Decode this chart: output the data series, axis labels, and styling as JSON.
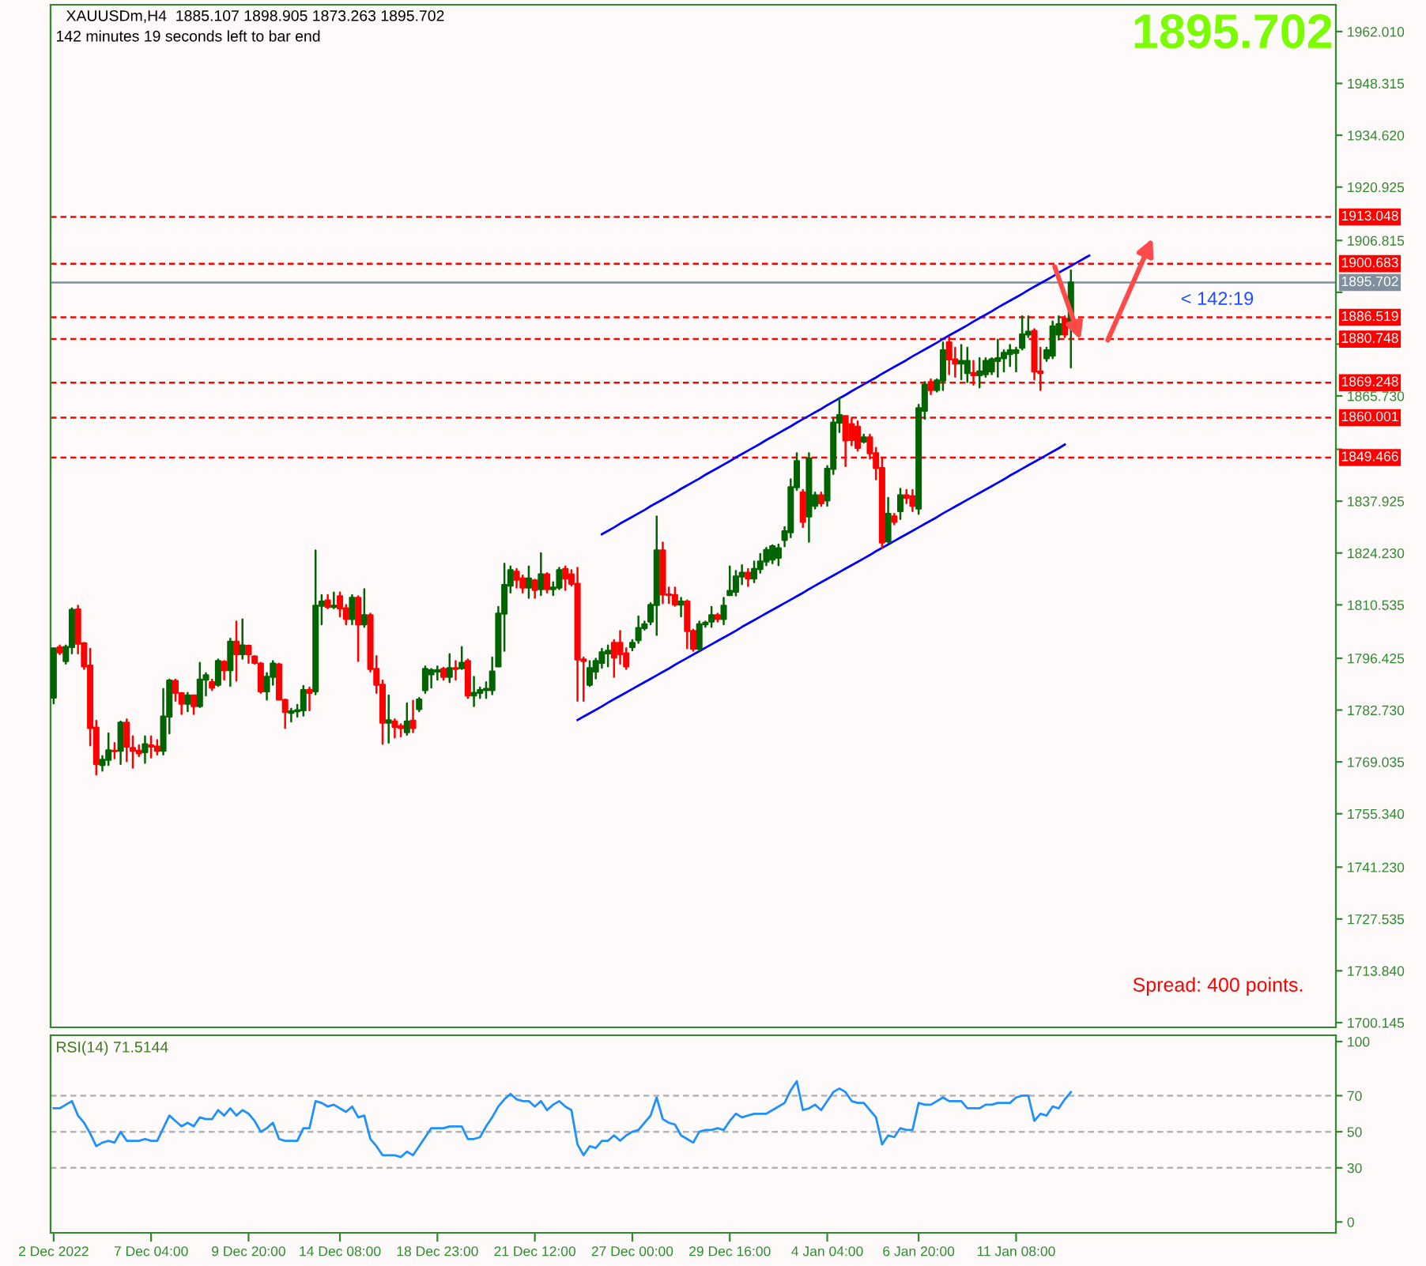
{
  "chart_data": [
    {
      "type": "candlestick",
      "title": "XAUUSDm,H4  1885.107 1898.905 1873.263 1895.702",
      "subtitle": "142 minutes 19 seconds left to bar end",
      "categories": [
        "2 Dec 2022",
        null,
        null,
        null,
        null,
        null,
        null,
        null,
        null,
        null,
        null,
        null,
        null,
        null,
        null,
        null,
        "7 Dec 04:00",
        null,
        null,
        null,
        null,
        null,
        null,
        null,
        null,
        null,
        null,
        null,
        null,
        null,
        null,
        null,
        "9 Dec 20:00",
        null,
        null,
        null,
        null,
        null,
        null,
        null,
        null,
        null,
        null,
        null,
        null,
        null,
        null,
        "14 Dec 08:00",
        null,
        null,
        null,
        null,
        null,
        null,
        null,
        null,
        null,
        null,
        null,
        null,
        null,
        null,
        null,
        "18 Dec 23:00",
        null,
        null,
        null,
        null,
        null,
        null,
        null,
        null,
        null,
        null,
        null,
        null,
        null,
        null,
        null,
        "21 Dec 12:00",
        null,
        null,
        null,
        null,
        null,
        null,
        null,
        null,
        null,
        null,
        null,
        null,
        null,
        null,
        null,
        "27 Dec 00:00",
        null,
        null,
        null,
        null,
        null,
        null,
        null,
        null,
        null,
        null,
        null,
        null,
        null,
        null,
        null,
        "29 Dec 16:00",
        null,
        null,
        null,
        null,
        null,
        null,
        null,
        null,
        null,
        null,
        null,
        null,
        null,
        null,
        null,
        "4 Jan 04:00",
        null,
        null,
        null,
        null,
        null,
        null,
        null,
        null,
        null,
        null,
        null,
        null,
        null,
        null,
        "6 Jan 20:00",
        null,
        null,
        null,
        null,
        null,
        null,
        null,
        null,
        null,
        null,
        null,
        null,
        null,
        null,
        null,
        "11 Jan 08:00",
        null,
        null,
        null,
        null,
        null,
        null,
        null,
        null,
        null,
        null,
        null,
        null,
        null,
        null,
        null,
        null,
        null,
        null,
        null,
        null,
        null,
        null,
        null,
        null,
        null,
        null,
        null,
        null,
        null,
        null,
        null,
        null,
        null,
        null,
        null,
        null,
        null,
        null,
        null,
        null,
        null,
        null,
        null,
        null,
        null,
        null,
        null,
        null,
        null,
        null,
        null,
        null
      ],
      "ohlc": [
        [
          1786,
          1799.1,
          1784.5,
          1799
        ],
        [
          1799.3,
          1799.8,
          1797.5,
          1798
        ],
        [
          1795.7,
          1799.8,
          1795,
          1799.4
        ],
        [
          1799.4,
          1809.6,
          1797.7,
          1809.2
        ],
        [
          1809.3,
          1810.3,
          1797.7,
          1800.3
        ],
        [
          1800.4,
          1800.5,
          1793.6,
          1794.3
        ],
        [
          1794.5,
          1798.9,
          1773.4,
          1778
        ],
        [
          1778.1,
          1779.9,
          1765.7,
          1768.5
        ],
        [
          1768.2,
          1770.6,
          1766.7,
          1769.6
        ],
        [
          1769.6,
          1776.6,
          1768.2,
          1772.1
        ],
        [
          1772,
          1774,
          1770,
          1771.9
        ],
        [
          1772,
          1779.7,
          1768.5,
          1779.4
        ],
        [
          1779.4,
          1780.3,
          1769.2,
          1773.1
        ],
        [
          1772.7,
          1775.8,
          1767.5,
          1772
        ],
        [
          1772,
          1773.4,
          1770.6,
          1771.3
        ],
        [
          1771.6,
          1775.8,
          1768.8,
          1773.7
        ],
        [
          1773.4,
          1775.8,
          1770.2,
          1773.1
        ],
        [
          1773.1,
          1774.8,
          1771,
          1772
        ],
        [
          1772,
          1788.3,
          1771,
          1781
        ],
        [
          1781,
          1790.8,
          1776.6,
          1790.5
        ],
        [
          1790.4,
          1790.8,
          1785.2,
          1787.3
        ],
        [
          1787.2,
          1787.3,
          1781.7,
          1784.4
        ],
        [
          1784.4,
          1787.3,
          1782.4,
          1786.6
        ],
        [
          1786.6,
          1786.6,
          1781.7,
          1783.8
        ],
        [
          1783.8,
          1795.2,
          1783.5,
          1790.8
        ],
        [
          1790.8,
          1792.5,
          1786.6,
          1791.9
        ],
        [
          1790.1,
          1790.8,
          1788,
          1788.7
        ],
        [
          1789.4,
          1796.1,
          1789.1,
          1795.7
        ],
        [
          1795.5,
          1795.7,
          1790.8,
          1793.3
        ],
        [
          1793.3,
          1801.6,
          1789.1,
          1800.8
        ],
        [
          1800.8,
          1806.1,
          1790.5,
          1797.5
        ],
        [
          1797.5,
          1806.7,
          1796.3,
          1799.8
        ],
        [
          1799.7,
          1799.8,
          1795.2,
          1797.5
        ],
        [
          1796.9,
          1797,
          1795,
          1795.2
        ],
        [
          1795,
          1795.2,
          1787.3,
          1787.7
        ],
        [
          1787.7,
          1792.5,
          1785.5,
          1791.5
        ],
        [
          1791.5,
          1795.7,
          1789.4,
          1795
        ],
        [
          1794.8,
          1795,
          1785.5,
          1785.5
        ],
        [
          1785.4,
          1785.5,
          1778,
          1782.2
        ],
        [
          1782,
          1783.1,
          1779.7,
          1782.4
        ],
        [
          1782.4,
          1784.1,
          1781,
          1782.7
        ],
        [
          1782.7,
          1789.1,
          1781.3,
          1788
        ],
        [
          1788,
          1788.7,
          1782.7,
          1787.3
        ],
        [
          1787.7,
          1824.9,
          1786.9,
          1810.3
        ],
        [
          1810.3,
          1813.1,
          1805.4,
          1811.4
        ],
        [
          1811.7,
          1813.1,
          1809.6,
          1810
        ],
        [
          1810,
          1813.8,
          1809.6,
          1810.3
        ],
        [
          1812.8,
          1813.8,
          1807.5,
          1809.6
        ],
        [
          1809.6,
          1810.5,
          1805.4,
          1806.8
        ],
        [
          1806.8,
          1813.1,
          1805.4,
          1812.4
        ],
        [
          1812.4,
          1812.8,
          1795.7,
          1805.4
        ],
        [
          1805.4,
          1814.7,
          1804.7,
          1807.8
        ],
        [
          1807.8,
          1808.2,
          1792.9,
          1793.6
        ],
        [
          1793.6,
          1797,
          1787.3,
          1789.4
        ],
        [
          1789.4,
          1790.5,
          1773.8,
          1779.4
        ],
        [
          1779.4,
          1786.6,
          1774.1,
          1780
        ],
        [
          1779.7,
          1780.3,
          1775.5,
          1778.3
        ],
        [
          1778.5,
          1779,
          1775.8,
          1778
        ],
        [
          1776.9,
          1784.5,
          1776.2,
          1779.7
        ],
        [
          1779.9,
          1785.2,
          1776.9,
          1778
        ],
        [
          1783,
          1785.9,
          1782.4,
          1785.5
        ],
        [
          1788,
          1794.3,
          1787.3,
          1793.6
        ],
        [
          1792.2,
          1793.6,
          1788.7,
          1793.3
        ],
        [
          1792.9,
          1794.3,
          1790.8,
          1793.3
        ],
        [
          1793.6,
          1793.9,
          1790.8,
          1791.5
        ],
        [
          1791.5,
          1797.5,
          1790.1,
          1793.8
        ],
        [
          1793.8,
          1795.7,
          1790.8,
          1793.6
        ],
        [
          1793.8,
          1799.4,
          1793.6,
          1795.2
        ],
        [
          1795.7,
          1796.1,
          1785.9,
          1786.6
        ],
        [
          1786.6,
          1791.5,
          1783.8,
          1787.3
        ],
        [
          1787.3,
          1788.7,
          1785.9,
          1788
        ],
        [
          1788,
          1790.1,
          1785.9,
          1788.3
        ],
        [
          1788,
          1796.6,
          1786.9,
          1792.9
        ],
        [
          1794.3,
          1810,
          1794.3,
          1808.2
        ],
        [
          1808.2,
          1821.4,
          1798.4,
          1815.8
        ],
        [
          1815.6,
          1820.7,
          1813.8,
          1819.7
        ],
        [
          1819.3,
          1820,
          1815.1,
          1817.2
        ],
        [
          1817.5,
          1818.3,
          1813.8,
          1815.1
        ],
        [
          1815.1,
          1820.7,
          1812.4,
          1817.5
        ],
        [
          1817,
          1817.2,
          1812.4,
          1814.5
        ],
        [
          1814.7,
          1824.2,
          1813.1,
          1818.6
        ],
        [
          1818.6,
          1818.9,
          1813.8,
          1814.7
        ],
        [
          1814.7,
          1816.5,
          1813.1,
          1815.1
        ],
        [
          1815.1,
          1820.3,
          1814.7,
          1819.7
        ],
        [
          1820,
          1820.7,
          1814.5,
          1817.5
        ],
        [
          1818.6,
          1819.7,
          1815.6,
          1816.1
        ],
        [
          1816.1,
          1820.3,
          1785.2,
          1796.1
        ],
        [
          1796.1,
          1796.6,
          1785.2,
          1795.7
        ],
        [
          1789.4,
          1795.7,
          1789.1,
          1793.8
        ],
        [
          1792.9,
          1796.3,
          1791.1,
          1795.7
        ],
        [
          1795.2,
          1798.9,
          1793.9,
          1798
        ],
        [
          1797.7,
          1799.8,
          1794.3,
          1798.4
        ],
        [
          1800.5,
          1801.2,
          1791.5,
          1796.6
        ],
        [
          1800.5,
          1803.6,
          1795,
          1797.5
        ],
        [
          1797.7,
          1799.1,
          1793.6,
          1794.3
        ],
        [
          1799.4,
          1801.2,
          1798.5,
          1800.5
        ],
        [
          1801.2,
          1807.5,
          1800.5,
          1804.4
        ],
        [
          1804.4,
          1806.1,
          1804,
          1805.4
        ],
        [
          1806.1,
          1811,
          1805.4,
          1810.5
        ],
        [
          1810.5,
          1833.9,
          1802.6,
          1824.9
        ],
        [
          1824.9,
          1827,
          1811,
          1813.3
        ],
        [
          1813.3,
          1815.1,
          1811,
          1813.1
        ],
        [
          1813.1,
          1815.1,
          1810.3,
          1810.6
        ],
        [
          1810.6,
          1812.4,
          1807.5,
          1811.4
        ],
        [
          1811.4,
          1811.7,
          1799.1,
          1803.6
        ],
        [
          1803.6,
          1804,
          1798.4,
          1798.9
        ],
        [
          1798.9,
          1806.1,
          1798.4,
          1805.4
        ],
        [
          1805.4,
          1806.1,
          1804.7,
          1805.8
        ],
        [
          1806.1,
          1810,
          1804.7,
          1807.8
        ],
        [
          1807.8,
          1808.2,
          1806.1,
          1806.8
        ],
        [
          1806.8,
          1812.4,
          1805.4,
          1810.3
        ],
        [
          1813.1,
          1820.7,
          1813.1,
          1814.2
        ],
        [
          1814,
          1819.5,
          1813,
          1818
        ],
        [
          1818,
          1821,
          1816,
          1819
        ],
        [
          1819,
          1820,
          1815.5,
          1817.5
        ],
        [
          1817.5,
          1822,
          1816.5,
          1820
        ],
        [
          1820,
          1824,
          1819,
          1822
        ],
        [
          1822,
          1825.6,
          1821,
          1825
        ],
        [
          1822.5,
          1826.3,
          1821.5,
          1826
        ],
        [
          1823,
          1826.5,
          1821,
          1825.5
        ],
        [
          1827.7,
          1831.1,
          1826,
          1830
        ],
        [
          1829.7,
          1843.7,
          1828.4,
          1841.6
        ],
        [
          1841.6,
          1850.6,
          1840.9,
          1848.5
        ],
        [
          1840.2,
          1840.9,
          1831.1,
          1832.5
        ],
        [
          1833.9,
          1850.6,
          1827.2,
          1849.2
        ],
        [
          1836.7,
          1840.2,
          1836,
          1839.5
        ],
        [
          1839.5,
          1840.2,
          1836.7,
          1837.4
        ],
        [
          1838.1,
          1847.2,
          1836.7,
          1846.5
        ],
        [
          1846.5,
          1859.7,
          1845.1,
          1858.7
        ],
        [
          1858.7,
          1865.2,
          1856.2,
          1860.7
        ],
        [
          1860.4,
          1860.4,
          1847.2,
          1854
        ],
        [
          1858.3,
          1859.7,
          1852.7,
          1854.1
        ],
        [
          1857.6,
          1859,
          1851.3,
          1852
        ],
        [
          1853.7,
          1855.5,
          1853.4,
          1854.8
        ],
        [
          1854.8,
          1855.5,
          1849.2,
          1850.6
        ],
        [
          1850.6,
          1852,
          1843.7,
          1846.7
        ],
        [
          1846.7,
          1849.2,
          1825.6,
          1827
        ],
        [
          1827.3,
          1838.8,
          1827,
          1834.6
        ],
        [
          1833.9,
          1834.6,
          1831.8,
          1832.5
        ],
        [
          1835.3,
          1841.2,
          1833.2,
          1839.5
        ],
        [
          1839.5,
          1840.9,
          1837.4,
          1838.8
        ],
        [
          1839.2,
          1840.9,
          1835.3,
          1836.7
        ],
        [
          1836,
          1863.4,
          1834.6,
          1862.5
        ],
        [
          1861.8,
          1869.4,
          1859.7,
          1868.7
        ],
        [
          1869.4,
          1870.1,
          1866.2,
          1867.3
        ],
        [
          1867.3,
          1870.1,
          1866.9,
          1869.8
        ],
        [
          1869.8,
          1879.9,
          1867.3,
          1877.8
        ],
        [
          1879.9,
          1881.3,
          1871.5,
          1875.4
        ],
        [
          1875.4,
          1878.5,
          1870.8,
          1874.3
        ],
        [
          1874.3,
          1879.2,
          1870.1,
          1875
        ],
        [
          1871.8,
          1878.5,
          1869.4,
          1875
        ],
        [
          1871.8,
          1875,
          1868.7,
          1871.2
        ],
        [
          1871.2,
          1875.7,
          1868,
          1872.2
        ],
        [
          1871.5,
          1875.7,
          1870.8,
          1875
        ],
        [
          1872.2,
          1875.7,
          1871.5,
          1875.4
        ],
        [
          1875,
          1880.6,
          1870.8,
          1875.7
        ],
        [
          1875.7,
          1877.8,
          1872.2,
          1877.1
        ],
        [
          1876.8,
          1879.2,
          1873.6,
          1877.8
        ],
        [
          1877.1,
          1878.5,
          1872.2,
          1877.8
        ],
        [
          1878.5,
          1886.8,
          1878,
          1882
        ],
        [
          1882,
          1886.8,
          1881.3,
          1882.7
        ],
        [
          1882.9,
          1883.4,
          1870.1,
          1872.2
        ],
        [
          1872.2,
          1878.5,
          1867.3,
          1871.8
        ],
        [
          1875.7,
          1878.5,
          1875,
          1877.8
        ],
        [
          1876.4,
          1885.4,
          1875.7,
          1884.1
        ],
        [
          1882,
          1886.8,
          1880.6,
          1884.7
        ],
        [
          1886.1,
          1886.8,
          1881.3,
          1882
        ],
        [
          1885.107,
          1898.905,
          1873.263,
          1895.702
        ],
        null,
        null,
        null,
        null,
        null,
        null,
        null,
        null,
        null,
        null,
        null,
        null,
        null,
        null,
        null,
        null,
        null,
        null,
        null,
        null,
        null,
        null,
        null,
        null,
        null,
        null,
        null,
        null,
        null,
        null,
        null,
        null,
        null,
        null,
        null,
        null,
        null,
        null,
        null,
        null,
        null,
        null,
        null
      ],
      "colors": [
        "#006400",
        "#ff0000",
        "#006400",
        "#006400",
        "#ff0000",
        "#ff0000",
        "#ff0000",
        "#ff0000",
        "#006400",
        "#006400",
        "#ff0000",
        "#006400",
        "#ff0000",
        "#ff0000",
        "#ff0000",
        "#006400",
        "#ff0000",
        "#ff0000",
        "#006400",
        "#006400",
        "#ff0000",
        "#ff0000",
        "#006400",
        "#ff0000",
        "#006400",
        "#006400",
        "#ff0000",
        "#006400",
        "#ff0000",
        "#006400",
        "#ff0000",
        "#006400",
        "#ff0000",
        "#ff0000",
        "#ff0000",
        "#006400",
        "#006400",
        "#ff0000",
        "#ff0000",
        "#006400",
        "#006400",
        "#006400",
        "#ff0000",
        "#006400",
        "#006400",
        "#ff0000",
        "#006400",
        "#ff0000",
        "#ff0000",
        "#006400",
        "#ff0000",
        "#006400",
        "#ff0000",
        "#ff0000",
        "#ff0000",
        "#006400",
        "#ff0000",
        "#ff0000",
        "#006400",
        "#ff0000",
        "#006400",
        "#006400",
        "#006400",
        "#006400",
        "#ff0000",
        "#006400",
        "#ff0000",
        "#006400",
        "#ff0000",
        "#006400",
        "#006400",
        "#006400",
        "#006400",
        "#006400",
        "#006400",
        "#006400",
        "#ff0000",
        "#ff0000",
        "#006400",
        "#ff0000",
        "#006400",
        "#ff0000",
        "#006400",
        "#006400",
        "#ff0000",
        "#ff0000",
        "#ff0000",
        "#ff0000",
        "#006400",
        "#006400",
        "#006400",
        "#006400",
        "#ff0000",
        "#ff0000",
        "#ff0000",
        "#006400",
        "#006400",
        "#006400",
        "#006400",
        "#006400",
        "#ff0000",
        "#ff0000",
        "#ff0000",
        "#006400",
        "#ff0000",
        "#ff0000",
        "#006400",
        "#006400",
        "#006400",
        "#ff0000",
        "#006400",
        "#006400",
        "#006400",
        "#006400",
        "#ff0000",
        "#006400",
        "#006400",
        "#006400",
        "#006400",
        "#006400",
        "#006400",
        "#006400",
        "#006400",
        "#ff0000",
        "#006400",
        "#006400",
        "#ff0000",
        "#006400",
        "#006400",
        "#006400",
        "#ff0000",
        "#ff0000",
        "#ff0000",
        "#006400",
        "#ff0000",
        "#ff0000",
        "#ff0000",
        "#006400",
        "#ff0000",
        "#006400",
        "#ff0000",
        "#ff0000",
        "#006400",
        "#006400",
        "#ff0000",
        "#006400",
        "#006400",
        "#ff0000",
        "#ff0000",
        "#006400",
        "#006400",
        "#ff0000",
        "#006400",
        "#006400",
        "#006400",
        "#006400",
        "#006400",
        "#006400",
        "#006400",
        "#006400",
        "#006400",
        "#ff0000",
        "#ff0000",
        "#006400",
        "#006400",
        "#006400",
        "#ff0000",
        "#006400",
        null,
        null,
        null,
        null,
        null,
        null,
        null,
        null,
        null,
        null,
        null,
        null,
        null,
        null,
        null,
        null,
        null,
        null,
        null,
        null,
        null,
        null,
        null,
        null,
        null,
        null,
        null,
        null,
        null,
        null,
        null,
        null,
        null,
        null,
        null,
        null,
        null,
        null,
        null,
        null,
        null,
        null,
        null
      ],
      "series": [
        {
          "type": "line",
          "color": "#0000ff",
          "values": [
            null,
            null,
            null,
            null,
            null,
            null,
            null,
            null,
            null,
            null,
            null,
            null,
            null,
            null,
            null,
            null,
            null,
            null,
            null,
            null,
            null,
            null,
            null,
            null,
            null,
            null,
            null,
            null,
            null,
            null,
            null,
            null,
            null,
            null,
            null,
            null,
            null,
            null,
            null,
            null,
            null,
            null,
            null,
            null,
            null,
            null,
            null,
            null,
            null,
            null,
            null,
            null,
            null,
            null,
            null,
            null,
            null,
            null,
            null,
            null,
            null,
            null,
            null,
            null,
            null,
            null,
            null,
            null,
            null,
            null,
            null,
            null,
            null,
            null,
            null,
            null,
            null,
            null,
            null,
            null,
            null,
            null,
            null,
            null,
            null,
            null,
            null,
            null,
            null,
            null,
            1829.2,
            1830.1,
            1831.0,
            1832.0,
            1832.9,
            1833.8,
            1834.7,
            1835.6,
            1836.6,
            1837.5,
            1838.4,
            1839.3,
            1840.2,
            1841.2,
            1842.1,
            1843.0,
            1843.9,
            1844.9,
            1845.8,
            1846.7,
            1847.6,
            1848.5,
            1849.5,
            1850.4,
            1851.3,
            1852.2,
            1853.1,
            1854.1,
            1855.0,
            1855.9,
            1856.8,
            1857.7,
            1858.7,
            1859.6,
            1860.5,
            1861.4,
            1862.3,
            1863.3,
            1864.2,
            1865.1,
            1866.0,
            1867.0,
            1867.9,
            1868.8,
            1869.7,
            1870.6,
            1871.6,
            1872.5,
            1873.4,
            1874.3,
            1875.2,
            1876.2,
            1877.1,
            1878.0,
            1878.9,
            1879.8,
            1880.8,
            1881.7,
            1882.6,
            1883.5,
            1884.4,
            1885.4,
            1886.3,
            1887.2,
            1888.1,
            1889.1,
            1890.0,
            1890.9,
            1891.8,
            1892.7,
            1893.7,
            1894.6,
            1895.5,
            1896.4,
            1897.3,
            1898.3,
            1899.2,
            1900.1,
            1901.0,
            1901.9,
            1902.8,
            null,
            null,
            null,
            null,
            null,
            null,
            null,
            null,
            null,
            null,
            null,
            null,
            null,
            null,
            null,
            null,
            null,
            null,
            null,
            null,
            null,
            null,
            null,
            null,
            null,
            null,
            null,
            null,
            null,
            null,
            null,
            null,
            null,
            null,
            null,
            null,
            null,
            null,
            null,
            null
          ]
        },
        {
          "type": "line",
          "color": "#0000ff",
          "values": [
            null,
            null,
            null,
            null,
            null,
            null,
            null,
            null,
            null,
            null,
            null,
            null,
            null,
            null,
            null,
            null,
            null,
            null,
            null,
            null,
            null,
            null,
            null,
            null,
            null,
            null,
            null,
            null,
            null,
            null,
            null,
            null,
            null,
            null,
            null,
            null,
            null,
            null,
            null,
            null,
            null,
            null,
            null,
            null,
            null,
            null,
            null,
            null,
            null,
            null,
            null,
            null,
            null,
            null,
            null,
            null,
            null,
            null,
            null,
            null,
            null,
            null,
            null,
            null,
            null,
            null,
            null,
            null,
            null,
            null,
            null,
            null,
            null,
            null,
            null,
            null,
            null,
            null,
            null,
            null,
            null,
            null,
            null,
            null,
            null,
            null,
            1780.1,
            1781.0,
            1781.9,
            1782.8,
            1783.7,
            1784.7,
            1785.6,
            1786.5,
            1787.4,
            1788.3,
            1789.2,
            1790.1,
            1791.0,
            1791.9,
            1792.8,
            1793.7,
            1794.7,
            1795.6,
            1796.5,
            1797.4,
            1798.3,
            1799.2,
            1800.1,
            1801.0,
            1801.9,
            1802.8,
            1803.7,
            1804.7,
            1805.6,
            1806.5,
            1807.4,
            1808.3,
            1809.2,
            1810.1,
            1811.0,
            1811.9,
            1812.8,
            1813.7,
            1814.7,
            1815.6,
            1816.5,
            1817.4,
            1818.3,
            1819.2,
            1820.1,
            1821.0,
            1821.9,
            1822.8,
            1823.7,
            1824.7,
            1825.6,
            1826.5,
            1827.4,
            1828.3,
            1829.2,
            1830.1,
            1831.0,
            1831.9,
            1832.8,
            1833.7,
            1834.7,
            1835.6,
            1836.5,
            1837.4,
            1838.3,
            1839.2,
            1840.1,
            1841.0,
            1841.9,
            1842.8,
            1843.7,
            1844.7,
            1845.6,
            1846.5,
            1847.4,
            1848.3,
            1849.2,
            1850.1,
            1851.0,
            1851.9,
            1852.9,
            null,
            null,
            null,
            null,
            null,
            null,
            null,
            null,
            null,
            null,
            null,
            null,
            null,
            null,
            null,
            null,
            null,
            null,
            null,
            null,
            null,
            null,
            null,
            null,
            null,
            null,
            null,
            null,
            null,
            null,
            null,
            null,
            null,
            null,
            null,
            null,
            null,
            null,
            null,
            null,
            null,
            null,
            null,
            null
          ]
        }
      ],
      "ylim": [
        1698.9,
        1969.1
      ],
      "yticks": [
        {
          "value": 1700.145,
          "label": "1700.145"
        },
        {
          "value": 1713.84,
          "label": "1713.840"
        },
        {
          "value": 1727.535,
          "label": "1727.535"
        },
        {
          "value": 1741.23,
          "label": "1741.230"
        },
        {
          "value": 1755.34,
          "label": "1755.340"
        },
        {
          "value": 1769.035,
          "label": "1769.035"
        },
        {
          "value": 1782.73,
          "label": "1782.730"
        },
        {
          "value": 1796.425,
          "label": "1796.425"
        },
        {
          "value": 1810.535,
          "label": "1810.535"
        },
        {
          "value": 1824.23,
          "label": "1824.230"
        },
        {
          "value": 1837.925,
          "label": "1837.925"
        },
        {
          "value": 1851.62,
          "label": null
        },
        {
          "value": 1865.73,
          "label": "1865.730"
        },
        {
          "value": 1879.425,
          "label": null
        },
        {
          "value": 1893.12,
          "label": null
        },
        {
          "value": 1906.815,
          "label": "1906.815"
        },
        {
          "value": 1920.925,
          "label": "1920.925"
        },
        {
          "value": 1934.62,
          "label": "1934.620"
        },
        {
          "value": 1948.315,
          "label": "1948.315"
        },
        {
          "value": 1962.01,
          "label": "1962.010"
        }
      ],
      "ref_lines": [
        {
          "axis": "y",
          "value": 1913.048,
          "label": "1913.048",
          "color": "#ff0000",
          "line_style": "dashed"
        },
        {
          "axis": "y",
          "value": 1900.683,
          "label": "1900.683",
          "color": "#ff0000",
          "line_style": "dashed"
        },
        {
          "axis": "y",
          "value": 1895.702,
          "label": "1895.702",
          "color": "#7f8fa0",
          "line_style": "solid"
        },
        {
          "axis": "y",
          "value": 1886.519,
          "label": "1886.519",
          "color": "#ff0000",
          "line_style": "dashed"
        },
        {
          "axis": "y",
          "value": 1880.748,
          "label": "1880.748",
          "color": "#ff0000",
          "line_style": "dashed"
        },
        {
          "axis": "y",
          "value": 1869.248,
          "label": "1869.248",
          "color": "#ff0000",
          "line_style": "dashed"
        },
        {
          "axis": "y",
          "value": 1860.001,
          "label": "1860.001",
          "color": "#ff0000",
          "line_style": "dashed"
        },
        {
          "axis": "y",
          "value": 1849.466,
          "label": "1849.466",
          "color": "#ff0000",
          "line_style": "dashed"
        }
      ],
      "annotations": [
        "1895.702",
        "Spread: 400 points.",
        "< 142:19"
      ],
      "tick_labels": "y"
    },
    {
      "type": "line",
      "title": "RSI(14) 71.5144",
      "series": [
        {
          "color": "#1e90ff",
          "values": [
            63,
            63,
            65,
            67,
            59,
            55,
            49,
            42,
            44,
            45,
            44,
            50,
            45,
            45,
            45,
            46,
            45,
            45,
            52,
            59,
            56,
            53,
            55,
            53,
            58,
            57,
            57,
            62,
            59,
            63,
            59,
            62,
            60,
            56,
            50,
            52,
            55,
            46,
            45,
            45,
            45,
            52,
            52,
            67,
            66,
            64,
            65,
            63,
            61,
            64,
            58,
            59,
            46,
            42,
            37,
            37,
            37,
            36,
            39,
            37,
            42,
            47,
            52,
            52,
            52,
            53,
            53,
            53,
            46,
            46,
            47,
            53,
            58,
            64,
            68,
            71,
            68,
            67,
            67,
            64,
            67,
            62,
            65,
            67,
            64,
            62,
            43,
            37,
            42,
            41,
            45,
            45,
            48,
            45,
            48,
            50,
            51,
            55,
            59,
            69,
            57,
            55,
            54,
            48,
            46,
            44,
            50,
            51,
            51,
            52,
            51,
            56,
            60,
            58,
            59,
            60,
            60,
            60,
            62,
            64,
            66,
            73,
            78,
            62,
            63,
            65,
            62,
            67,
            72,
            74,
            72,
            67,
            66,
            66,
            62,
            58,
            43,
            48,
            47,
            52,
            51,
            51,
            66,
            65,
            65,
            67,
            69,
            67,
            67,
            67,
            63,
            63,
            63,
            65,
            65,
            66,
            66,
            66,
            69,
            70,
            70,
            56,
            60,
            59,
            64,
            63,
            68,
            72,
            null,
            null,
            null,
            null,
            null,
            null,
            null,
            null,
            null,
            null,
            null,
            null,
            null,
            null,
            null,
            null,
            null,
            null,
            null,
            null,
            null,
            null,
            null,
            null,
            null,
            null,
            null,
            null,
            null,
            null,
            null,
            null,
            null,
            null,
            null,
            null,
            null,
            null,
            null,
            null,
            null,
            null,
            null
          ]
        }
      ],
      "ylim": [
        -6,
        103.5
      ],
      "yticks": [
        0,
        30,
        50,
        70,
        100
      ],
      "ref_lines": [
        {
          "axis": "y",
          "value": 70,
          "color": "#b4b4b4",
          "line_style": "dashed"
        },
        {
          "axis": "y",
          "value": 50,
          "color": "#b4b4b4",
          "line_style": "dashed"
        },
        {
          "axis": "y",
          "value": 30,
          "color": "#b4b4b4",
          "line_style": "dashed"
        }
      ]
    }
  ]
}
